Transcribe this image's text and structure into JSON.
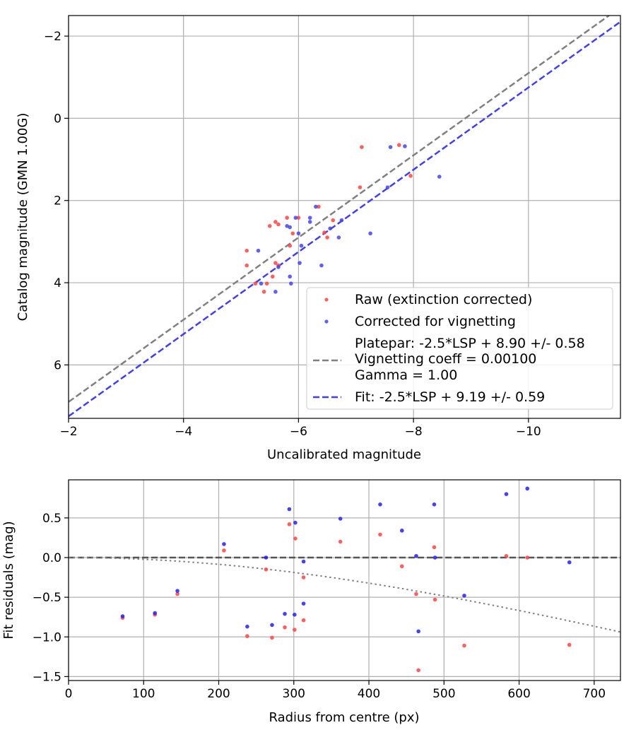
{
  "chart_data": [
    {
      "type": "scatter",
      "xlabel": "Uncalibrated magnitude",
      "ylabel": "Catalog magnitude (GMN 1.00G)",
      "xlim": [
        -2.0,
        -11.6
      ],
      "ylim": [
        7.3,
        -2.5
      ],
      "xticks": [
        -2,
        -4,
        -6,
        -8,
        -10
      ],
      "xtick_labels": [
        "−2",
        "−4",
        "−6",
        "−8",
        "−10"
      ],
      "yticks": [
        -2,
        0,
        2,
        4,
        6
      ],
      "ytick_labels": [
        "−2",
        "0",
        "2",
        "4",
        "6"
      ],
      "grid": true,
      "legend_position": "bottom-right",
      "legend": [
        {
          "label": "Raw (extinction corrected)",
          "kind": "dot",
          "color": "#ff4444"
        },
        {
          "label": "Corrected for vignetting",
          "kind": "dot",
          "color": "#4444ee"
        },
        {
          "label_lines": [
            "Platepar: -2.5*LSP + 8.90 +/- 0.58",
            "Vignetting coeff = 0.00100",
            "Gamma = 1.00"
          ],
          "kind": "dashed",
          "color": "#808080"
        },
        {
          "label": "Fit: -2.5*LSP + 9.19 +/- 0.59",
          "kind": "dashed",
          "color": "#4040ee"
        }
      ],
      "series": [
        {
          "name": "Raw (extinction corrected)",
          "color": "#ff4444",
          "points": [
            [
              -7.1,
              0.7
            ],
            [
              -7.75,
              0.65
            ],
            [
              -7.07,
              1.68
            ],
            [
              -7.95,
              1.4
            ],
            [
              -6.35,
              2.15
            ],
            [
              -5.8,
              2.42
            ],
            [
              -6.0,
              2.42
            ],
            [
              -6.6,
              2.48
            ],
            [
              -5.5,
              2.62
            ],
            [
              -5.6,
              2.52
            ],
            [
              -5.65,
              2.58
            ],
            [
              -5.9,
              2.8
            ],
            [
              -6.45,
              2.78
            ],
            [
              -6.5,
              2.9
            ],
            [
              -5.1,
              3.22
            ],
            [
              -5.85,
              3.1
            ],
            [
              -5.1,
              3.58
            ],
            [
              -5.6,
              3.52
            ],
            [
              -5.65,
              3.58
            ],
            [
              -5.55,
              3.85
            ],
            [
              -5.25,
              4.02
            ],
            [
              -5.45,
              4.02
            ],
            [
              -5.4,
              4.22
            ]
          ]
        },
        {
          "name": "Corrected for vignetting",
          "color": "#4444ee",
          "points": [
            [
              -7.6,
              0.7
            ],
            [
              -7.85,
              0.68
            ],
            [
              -8.45,
              1.42
            ],
            [
              -7.55,
              1.68
            ],
            [
              -6.3,
              2.15
            ],
            [
              -5.95,
              2.42
            ],
            [
              -6.2,
              2.42
            ],
            [
              -6.75,
              2.48
            ],
            [
              -5.8,
              2.62
            ],
            [
              -5.85,
              2.65
            ],
            [
              -6.2,
              2.52
            ],
            [
              -6.0,
              2.8
            ],
            [
              -6.55,
              2.68
            ],
            [
              -6.7,
              2.9
            ],
            [
              -7.25,
              2.8
            ],
            [
              -6.05,
              3.1
            ],
            [
              -5.3,
              3.22
            ],
            [
              -6.02,
              3.52
            ],
            [
              -6.4,
              3.58
            ],
            [
              -5.65,
              3.62
            ],
            [
              -5.85,
              3.85
            ],
            [
              -5.87,
              4.02
            ],
            [
              -5.35,
              4.02
            ],
            [
              -5.6,
              4.22
            ]
          ]
        }
      ],
      "lines": [
        {
          "name": "Platepar: -2.5*LSP + 8.90 +/- 0.58",
          "style": "dashed",
          "color": "#808080",
          "x": [
            -2.0,
            -11.6
          ],
          "y": [
            6.9,
            -2.7
          ]
        },
        {
          "name": "Fit: -2.5*LSP + 9.19 +/- 0.59",
          "style": "dashed",
          "color": "#4040ee",
          "x": [
            -2.0,
            -11.6
          ],
          "y": [
            7.25,
            -2.35
          ]
        }
      ]
    },
    {
      "type": "scatter",
      "xlabel": "Radius from centre (px)",
      "ylabel": "Fit residuals (mag)",
      "xlim": [
        0,
        735
      ],
      "ylim": [
        -1.55,
        0.98
      ],
      "xticks": [
        0,
        100,
        200,
        300,
        400,
        500,
        600,
        700
      ],
      "xtick_labels": [
        "0",
        "100",
        "200",
        "300",
        "400",
        "500",
        "600",
        "700"
      ],
      "yticks": [
        -1.5,
        -1.0,
        -0.5,
        0.0,
        0.5
      ],
      "ytick_labels": [
        "−1.5",
        "−1.0",
        "−0.5",
        "0.0",
        "0.5"
      ],
      "grid": true,
      "series": [
        {
          "name": "Raw (extinction corrected)",
          "color": "#ff4444",
          "points": [
            [
              72,
              -0.76
            ],
            [
              115,
              -0.72
            ],
            [
              145,
              -0.46
            ],
            [
              207,
              0.09
            ],
            [
              238,
              -0.99
            ],
            [
              263,
              -0.15
            ],
            [
              271,
              -1.01
            ],
            [
              288,
              -0.88
            ],
            [
              294,
              0.42
            ],
            [
              301,
              -0.91
            ],
            [
              302,
              0.24
            ],
            [
              313,
              -0.25
            ],
            [
              313,
              -0.79
            ],
            [
              362,
              0.2
            ],
            [
              415,
              0.29
            ],
            [
              444,
              -0.11
            ],
            [
              463,
              -0.46
            ],
            [
              466,
              -1.42
            ],
            [
              487,
              0.13
            ],
            [
              488,
              -0.53
            ],
            [
              527,
              -1.11
            ],
            [
              583,
              0.02
            ],
            [
              611,
              0.0
            ],
            [
              667,
              -1.1
            ]
          ]
        },
        {
          "name": "Corrected for vignetting",
          "color": "#2222ee",
          "points": [
            [
              72,
              -0.74
            ],
            [
              115,
              -0.7
            ],
            [
              145,
              -0.42
            ],
            [
              207,
              0.17
            ],
            [
              238,
              -0.87
            ],
            [
              263,
              0.0
            ],
            [
              271,
              -0.85
            ],
            [
              288,
              -0.71
            ],
            [
              294,
              0.61
            ],
            [
              301,
              -0.72
            ],
            [
              302,
              0.44
            ],
            [
              313,
              -0.05
            ],
            [
              313,
              -0.58
            ],
            [
              362,
              0.49
            ],
            [
              415,
              0.67
            ],
            [
              444,
              0.34
            ],
            [
              463,
              0.02
            ],
            [
              466,
              -0.93
            ],
            [
              487,
              0.67
            ],
            [
              488,
              0.0
            ],
            [
              527,
              -0.48
            ],
            [
              583,
              0.8
            ],
            [
              611,
              0.87
            ],
            [
              667,
              -0.06
            ]
          ]
        }
      ],
      "lines": [
        {
          "name": "zero",
          "style": "dashed",
          "color": "#555555",
          "x": [
            0,
            735
          ],
          "y": [
            0,
            0
          ]
        },
        {
          "name": "vignetting curve",
          "style": "dotted",
          "color": "#808080",
          "function": "vignetting",
          "x_range": [
            0,
            735
          ]
        }
      ]
    }
  ]
}
